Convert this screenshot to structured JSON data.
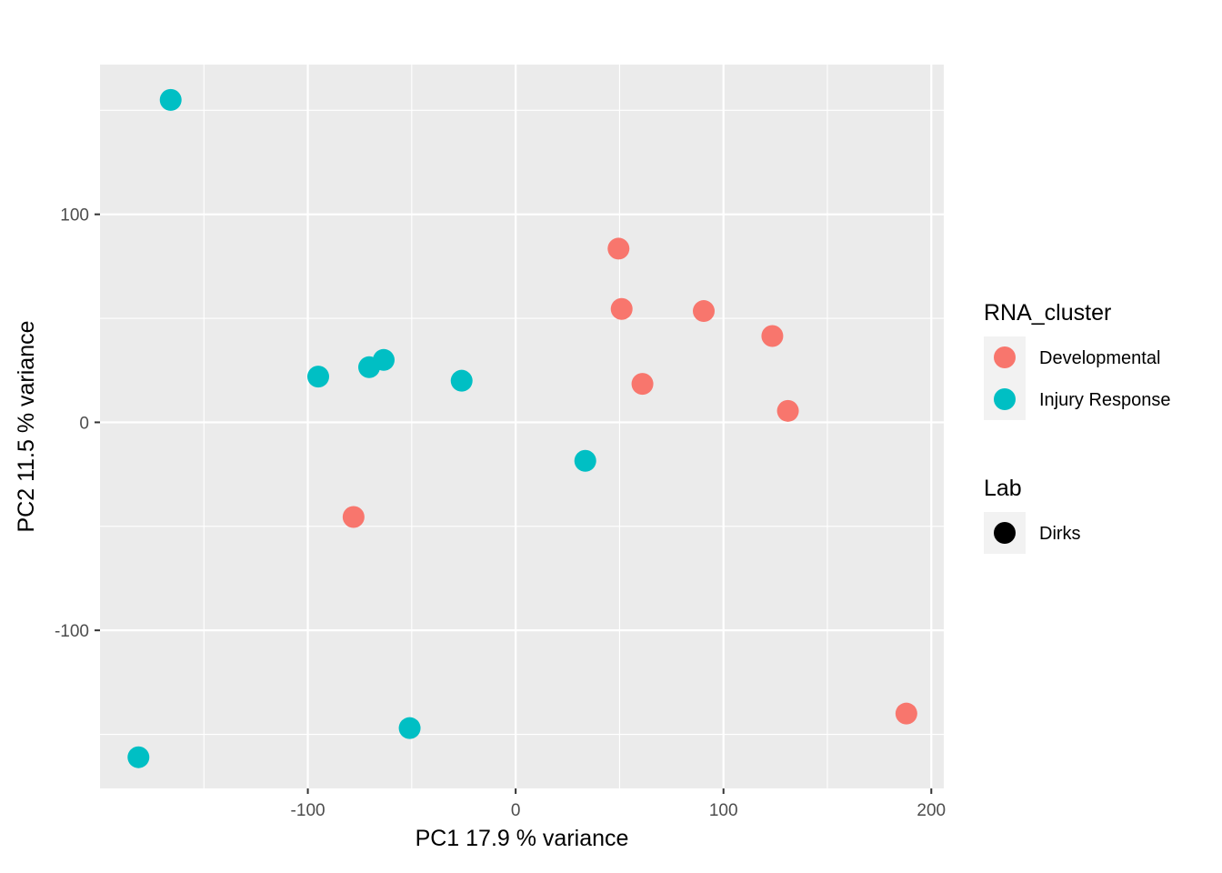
{
  "chart_data": {
    "type": "scatter",
    "xlabel": "PC1 17.9 % variance",
    "ylabel": "PC2 11.5 % variance",
    "xlim": [
      -200,
      206
    ],
    "ylim": [
      -176,
      172
    ],
    "x_ticks": [
      -100,
      0,
      100,
      200
    ],
    "x_tick_labels": [
      "-100",
      "0",
      "100",
      "200"
    ],
    "y_ticks": [
      -100,
      0,
      100
    ],
    "y_tick_labels": [
      "-100",
      "0",
      "100"
    ],
    "grid": true,
    "legend_position": "right",
    "legends": [
      {
        "title": "RNA_cluster",
        "entries": [
          {
            "label": "Developmental",
            "color": "#F8766D"
          },
          {
            "label": "Injury Response",
            "color": "#00BFC4"
          }
        ]
      },
      {
        "title": "Lab",
        "entries": [
          {
            "label": "Dirks",
            "color": "#000000"
          }
        ]
      }
    ],
    "series": [
      {
        "name": "Developmental",
        "color": "#F8766D",
        "points": [
          {
            "x": 49.5,
            "y": 83.5
          },
          {
            "x": 51.0,
            "y": 54.5
          },
          {
            "x": 90.5,
            "y": 53.5
          },
          {
            "x": 123.5,
            "y": 41.5
          },
          {
            "x": 61.0,
            "y": 18.5
          },
          {
            "x": 131.0,
            "y": 5.5
          },
          {
            "x": -78.0,
            "y": -45.5
          },
          {
            "x": 188.0,
            "y": -140.0
          }
        ]
      },
      {
        "name": "Injury Response",
        "color": "#00BFC4",
        "points": [
          {
            "x": -166.0,
            "y": 155.0
          },
          {
            "x": -95.0,
            "y": 22.0
          },
          {
            "x": -70.5,
            "y": 26.5
          },
          {
            "x": -63.5,
            "y": 30.0
          },
          {
            "x": -26.0,
            "y": 20.0
          },
          {
            "x": 33.5,
            "y": -18.5
          },
          {
            "x": -51.0,
            "y": -147.0
          },
          {
            "x": -181.5,
            "y": -161.0
          }
        ]
      }
    ]
  }
}
